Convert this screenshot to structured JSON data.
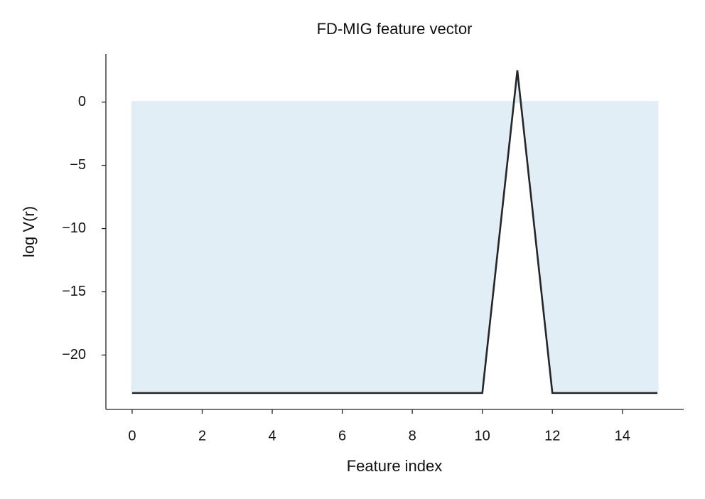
{
  "chart_data": {
    "type": "line",
    "title": "FD-MIG feature vector",
    "x_label": "Feature index",
    "y_label": "log V(r)",
    "x": [
      0,
      1,
      2,
      3,
      4,
      5,
      6,
      7,
      8,
      9,
      10,
      11,
      12,
      13,
      14,
      15
    ],
    "series": [
      {
        "color": "#262626",
        "values": [
          -23,
          -23,
          -23,
          -23,
          -23,
          -23,
          -23,
          -23,
          -23,
          -23,
          -23,
          2.5,
          -23,
          -23,
          -23,
          -23
        ]
      }
    ],
    "fill_to": 0,
    "fill_color": "#e2eef5",
    "xlim": [
      -0.75,
      15.75
    ],
    "xticks": [
      0,
      2,
      4,
      6,
      8,
      10,
      12,
      14
    ],
    "ylim": [
      -24.3,
      3.8
    ],
    "yticks": [
      {
        "value": -20,
        "label": "−20"
      },
      {
        "value": -15,
        "label": "−15"
      },
      {
        "value": -10,
        "label": "−10"
      },
      {
        "value": -5,
        "label": "−5"
      },
      0
    ],
    "grid": false
  }
}
